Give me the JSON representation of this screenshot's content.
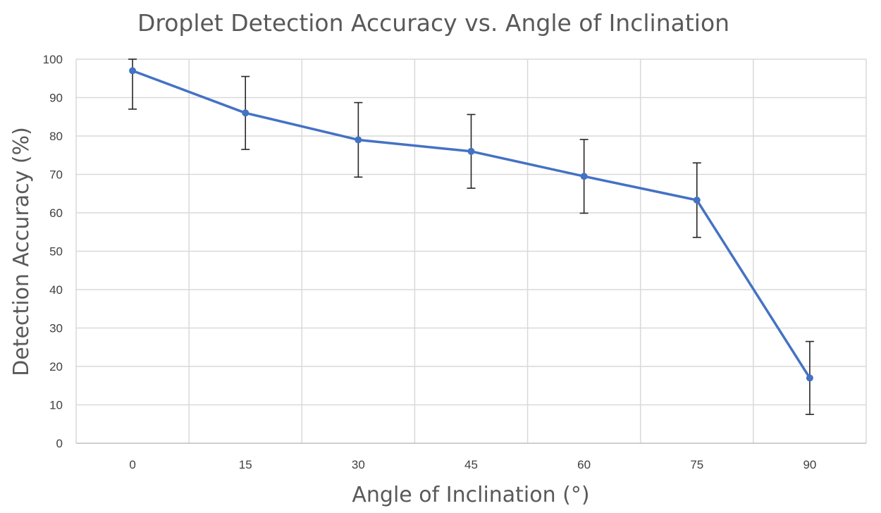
{
  "chart_data": {
    "type": "line",
    "title": "Droplet Detection Accuracy vs. Angle of Inclination",
    "xlabel": "Angle of Inclination (°)",
    "ylabel": "Detection Accuracy (%)",
    "categories": [
      "0",
      "15",
      "30",
      "45",
      "60",
      "75",
      "90"
    ],
    "series": [
      {
        "name": "Detection Accuracy",
        "values": [
          97,
          86,
          79,
          76,
          69.5,
          63.3,
          17
        ],
        "error": [
          10,
          9.5,
          9.7,
          9.6,
          9.6,
          9.7,
          9.5
        ]
      }
    ],
    "ylim": [
      0,
      100
    ],
    "yticks": [
      "0",
      "10",
      "20",
      "30",
      "40",
      "50",
      "60",
      "70",
      "80",
      "90",
      "100"
    ],
    "grid": true,
    "colors": {
      "line": "#4472c4",
      "error_bar": "#262626",
      "grid": "#d9d9d9"
    }
  }
}
